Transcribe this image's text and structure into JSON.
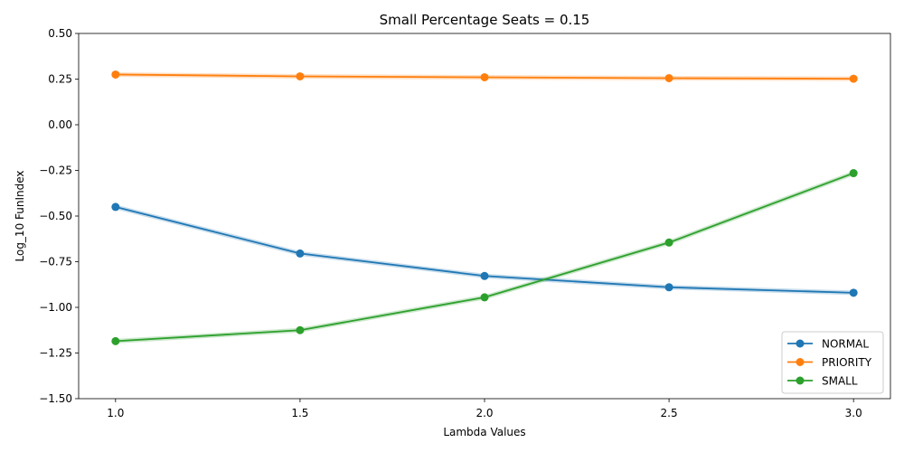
{
  "chart_data": {
    "type": "line",
    "title": "Small Percentage Seats = 0.15",
    "xlabel": "Lambda Values",
    "ylabel": "Log_10 FunIndex",
    "x": [
      1.0,
      1.5,
      2.0,
      2.5,
      3.0
    ],
    "x_tick_labels": [
      "1.0",
      "1.5",
      "2.0",
      "2.5",
      "3.0"
    ],
    "xlim": [
      0.9,
      3.1
    ],
    "ylim": [
      -1.5,
      0.5
    ],
    "y_ticks": [
      -1.5,
      -1.25,
      -1.0,
      -0.75,
      -0.5,
      -0.25,
      0.0,
      0.25,
      0.5
    ],
    "y_tick_labels": [
      "−1.50",
      "−1.25",
      "−1.00",
      "−0.75",
      "−0.50",
      "−0.25",
      "0.00",
      "0.25",
      "0.50"
    ],
    "grid": false,
    "legend_position": "bottom-right",
    "series": [
      {
        "name": "NORMAL",
        "color": "#1f77b4",
        "values": [
          -0.45,
          -0.705,
          -0.828,
          -0.89,
          -0.92
        ]
      },
      {
        "name": "PRIORITY",
        "color": "#ff7f0e",
        "values": [
          0.275,
          0.265,
          0.26,
          0.255,
          0.252
        ]
      },
      {
        "name": "SMALL",
        "color": "#2ca02c",
        "values": [
          -1.185,
          -1.125,
          -0.945,
          -0.645,
          -0.265
        ]
      }
    ]
  }
}
